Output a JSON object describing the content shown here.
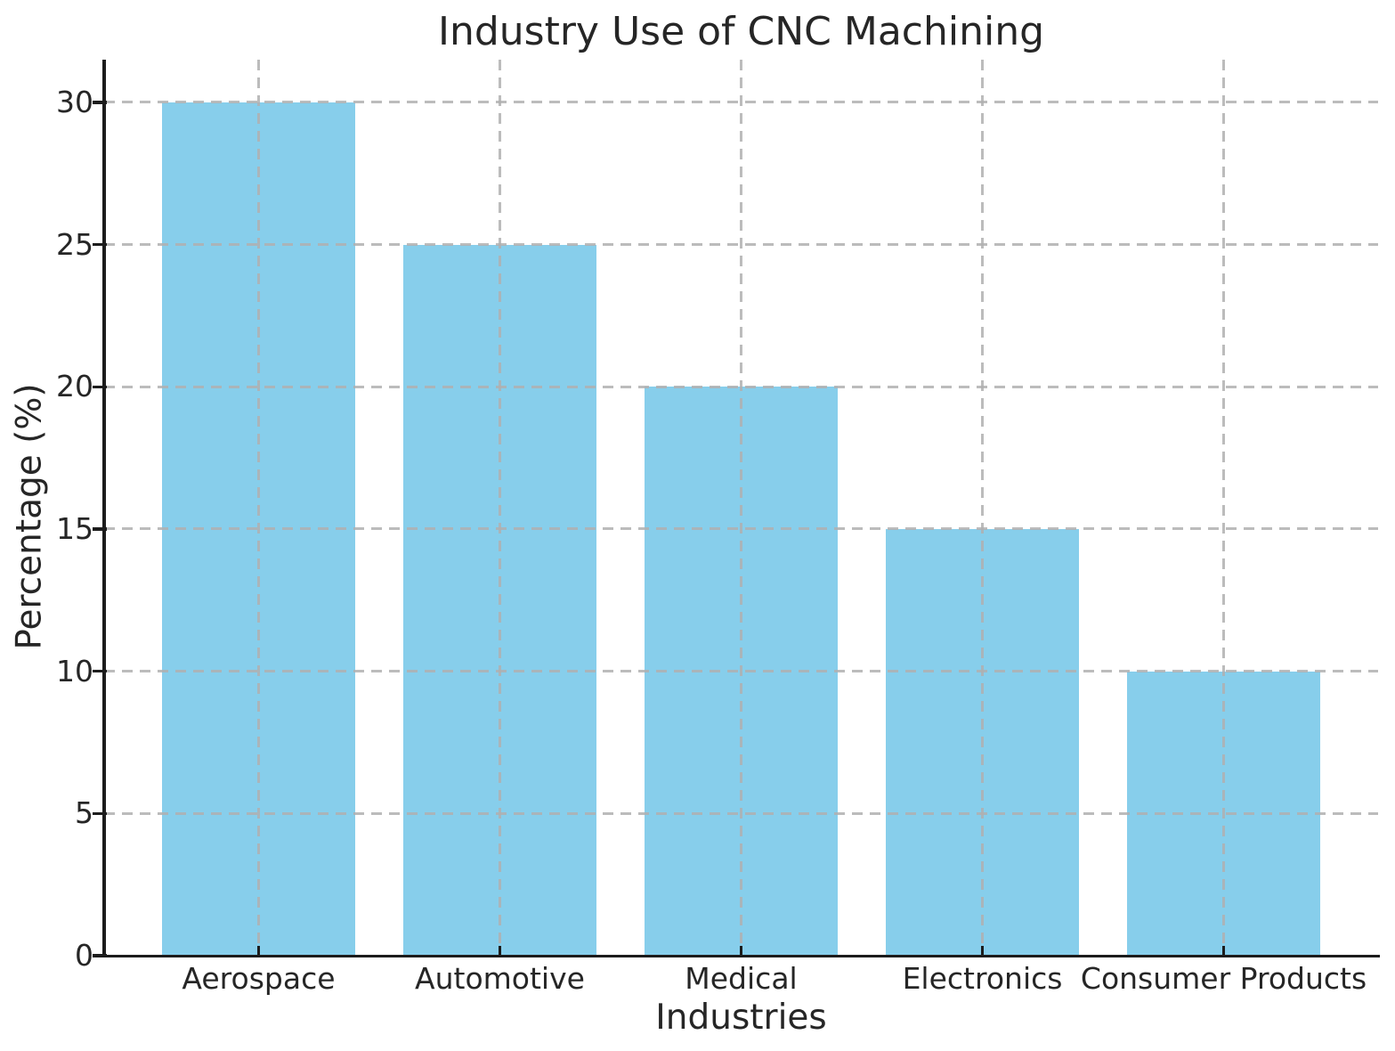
{
  "chart_data": {
    "type": "bar",
    "title": "Industry Use of CNC Machining",
    "xlabel": "Industries",
    "ylabel": "Percentage (%)",
    "categories": [
      "Aerospace",
      "Automotive",
      "Medical",
      "Electronics",
      "Consumer Products"
    ],
    "values": [
      30,
      25,
      20,
      15,
      10
    ],
    "ytick_labels": [
      "0",
      "5",
      "10",
      "15",
      "20",
      "25",
      "30"
    ],
    "yticks": [
      0,
      5,
      10,
      15,
      20,
      25,
      30
    ],
    "ylim": [
      0,
      31.5
    ],
    "bar_color": "#87CEEB",
    "grid": "both, dashed, drawn above bars",
    "gridline_color": "#b0b0b0",
    "axis_color": "#1c1c1c",
    "text_color": "#262626",
    "background": "#ffffff",
    "legend": null
  }
}
